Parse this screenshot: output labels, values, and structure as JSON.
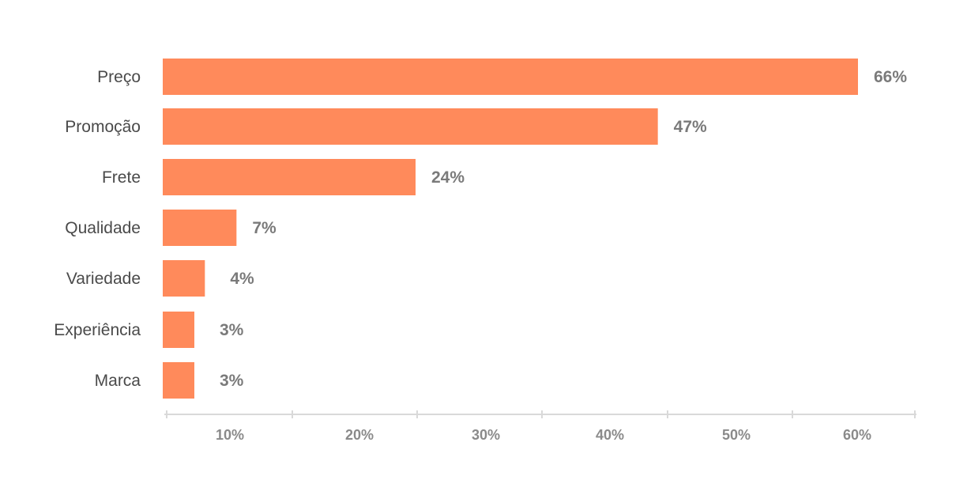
{
  "chart_data": {
    "type": "bar",
    "orientation": "horizontal",
    "categories": [
      "Preço",
      "Promoção",
      "Frete",
      "Qualidade",
      "Variedade",
      "Experiência",
      "Marca"
    ],
    "values": [
      66,
      47,
      24,
      7,
      4,
      3,
      3
    ],
    "value_labels": [
      "66%",
      "47%",
      "24%",
      "7%",
      "4%",
      "3%",
      "3%"
    ],
    "x_ticks": [
      "10%",
      "20%",
      "30%",
      "40%",
      "50%",
      "60%"
    ],
    "title": "",
    "xlabel": "",
    "ylabel": "",
    "grid": false,
    "legend": "none",
    "bar_color": "#ff8a5b",
    "axis_color": "#d9d9d9"
  }
}
